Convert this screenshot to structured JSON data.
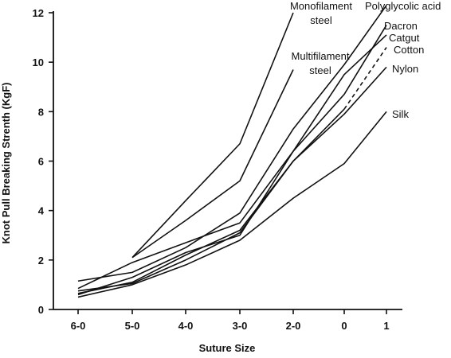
{
  "chart_data": {
    "type": "line",
    "xlabel": "Suture Size",
    "ylabel": "Knot Pull Breaking Strenth (KgF)",
    "categories": [
      "6-0",
      "5-0",
      "4-0",
      "3-0",
      "2-0",
      "0",
      "1"
    ],
    "ylim": [
      0,
      12
    ],
    "yticks": [
      0,
      2,
      4,
      6,
      8,
      10,
      12
    ],
    "grid": false,
    "legend": "labels at line ends",
    "series": [
      {
        "name": "Monofilament steel",
        "label_lines": [
          "Monofilament",
          "steel"
        ],
        "points": [
          [
            "5-0",
            2.1
          ],
          [
            "4-0",
            4.4
          ],
          [
            "3-0",
            6.7
          ],
          [
            "2-0",
            12.0
          ]
        ]
      },
      {
        "name": "Multifilament steel",
        "label_lines": [
          "Multifilament",
          "steel"
        ],
        "points": [
          [
            "5-0",
            2.1
          ],
          [
            "4-0",
            3.6
          ],
          [
            "3-0",
            5.2
          ],
          [
            "2-0",
            9.7
          ]
        ]
      },
      {
        "name": "Polyglycolic acid",
        "label_lines": [
          "Polyglycolic acid"
        ],
        "points": [
          [
            "6-0",
            1.15
          ],
          [
            "5-0",
            1.5
          ],
          [
            "4-0",
            2.5
          ],
          [
            "3-0",
            3.9
          ],
          [
            "2-0",
            7.3
          ],
          [
            "0",
            9.9
          ],
          [
            "1",
            12.3
          ]
        ]
      },
      {
        "name": "Dacron",
        "label_lines": [
          "Dacron"
        ],
        "points": [
          [
            "6-0",
            0.85
          ],
          [
            "5-0",
            1.9
          ],
          [
            "4-0",
            2.7
          ],
          [
            "3-0",
            3.5
          ],
          [
            "2-0",
            6.4
          ],
          [
            "0",
            8.7
          ],
          [
            "1",
            11.5
          ]
        ]
      },
      {
        "name": "Catgut",
        "label_lines": [
          "Catgut"
        ],
        "points": [
          [
            "6-0",
            0.6
          ],
          [
            "5-0",
            1.3
          ],
          [
            "4-0",
            2.3
          ],
          [
            "3-0",
            3.0
          ],
          [
            "2-0",
            6.4
          ],
          [
            "0",
            9.5
          ],
          [
            "1",
            11.1
          ]
        ]
      },
      {
        "name": "Cotton",
        "label_lines": [
          "Cotton"
        ],
        "points": [
          [
            "6-0",
            0.65
          ],
          [
            "5-0",
            1.1
          ],
          [
            "4-0",
            2.2
          ],
          [
            "3-0",
            3.2
          ],
          [
            "2-0",
            6.0
          ],
          [
            "0",
            8.1
          ],
          [
            "1",
            10.6
          ]
        ],
        "dashed_last_segment": true
      },
      {
        "name": "Nylon",
        "label_lines": [
          "Nylon"
        ],
        "points": [
          [
            "6-0",
            0.75
          ],
          [
            "5-0",
            1.05
          ],
          [
            "4-0",
            2.0
          ],
          [
            "3-0",
            3.1
          ],
          [
            "2-0",
            6.0
          ],
          [
            "0",
            7.9
          ],
          [
            "1",
            9.8
          ]
        ]
      },
      {
        "name": "Silk",
        "label_lines": [
          "Silk"
        ],
        "points": [
          [
            "6-0",
            0.5
          ],
          [
            "5-0",
            1.0
          ],
          [
            "4-0",
            1.8
          ],
          [
            "3-0",
            2.8
          ],
          [
            "2-0",
            4.5
          ],
          [
            "0",
            5.9
          ],
          [
            "1",
            8.0
          ]
        ]
      }
    ]
  }
}
